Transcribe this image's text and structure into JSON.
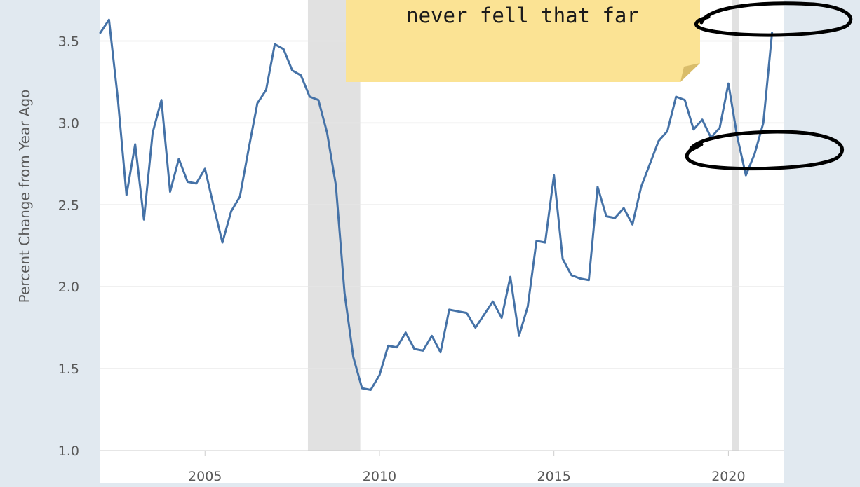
{
  "chart_data": {
    "type": "line",
    "title": "",
    "xlabel": "",
    "ylabel": "Percent Change from Year Ago",
    "xlim": [
      2002.0,
      2021.6
    ],
    "ylim": [
      1.0,
      3.75
    ],
    "x_ticks": [
      {
        "value": 2005,
        "label": "2005"
      },
      {
        "value": 2010,
        "label": "2010"
      },
      {
        "value": 2015,
        "label": "2015"
      },
      {
        "value": 2020,
        "label": "2020"
      }
    ],
    "y_ticks": [
      {
        "value": 1.0,
        "label": "1.0"
      },
      {
        "value": 1.5,
        "label": "1.5"
      },
      {
        "value": 2.0,
        "label": "2.0"
      },
      {
        "value": 2.5,
        "label": "2.5"
      },
      {
        "value": 3.0,
        "label": "3.0"
      },
      {
        "value": 3.5,
        "label": "3.5"
      }
    ],
    "grid": true,
    "recessions": [
      {
        "start": 2007.95,
        "end": 2009.45
      },
      {
        "start": 2020.1,
        "end": 2020.3
      }
    ],
    "series": [
      {
        "color": "#4572a7",
        "x": [
          2002.0,
          2002.25,
          2002.5,
          2002.75,
          2003.0,
          2003.25,
          2003.5,
          2003.75,
          2004.0,
          2004.25,
          2004.5,
          2004.75,
          2005.0,
          2005.25,
          2005.5,
          2005.75,
          2006.0,
          2006.25,
          2006.5,
          2006.75,
          2007.0,
          2007.25,
          2007.5,
          2007.75,
          2008.0,
          2008.25,
          2008.5,
          2008.75,
          2009.0,
          2009.25,
          2009.5,
          2009.75,
          2010.0,
          2010.25,
          2010.5,
          2010.75,
          2011.0,
          2011.25,
          2011.5,
          2011.75,
          2012.0,
          2012.25,
          2012.5,
          2012.75,
          2013.0,
          2013.25,
          2013.5,
          2013.75,
          2014.0,
          2014.25,
          2014.5,
          2014.75,
          2015.0,
          2015.25,
          2015.5,
          2015.75,
          2016.0,
          2016.25,
          2016.5,
          2016.75,
          2017.0,
          2017.25,
          2017.5,
          2017.75,
          2018.0,
          2018.25,
          2018.5,
          2018.75,
          2019.0,
          2019.25,
          2019.5,
          2019.75,
          2020.0,
          2020.25,
          2020.5,
          2020.75,
          2021.0,
          2021.25
        ],
        "y": [
          3.55,
          3.63,
          3.15,
          2.56,
          2.87,
          2.41,
          2.94,
          3.14,
          2.58,
          2.78,
          2.64,
          2.63,
          2.72,
          2.49,
          2.27,
          2.46,
          2.55,
          2.84,
          3.12,
          3.2,
          3.48,
          3.45,
          3.32,
          3.29,
          3.16,
          3.14,
          2.94,
          2.62,
          1.96,
          1.57,
          1.38,
          1.37,
          1.46,
          1.64,
          1.63,
          1.72,
          1.62,
          1.61,
          1.7,
          1.6,
          1.86,
          1.85,
          1.84,
          1.75,
          1.83,
          1.91,
          1.81,
          2.06,
          1.7,
          1.88,
          2.28,
          2.27,
          2.68,
          2.17,
          2.07,
          2.05,
          2.04,
          2.61,
          2.43,
          2.42,
          2.48,
          2.38,
          2.61,
          2.75,
          2.89,
          2.95,
          3.16,
          3.14,
          2.96,
          3.02,
          2.91,
          2.97,
          3.24,
          2.92,
          2.68,
          2.81,
          3.0,
          3.55
        ]
      }
    ],
    "annotations": [
      {
        "type": "note",
        "text": "never fell that far",
        "color": "#fbe394"
      },
      {
        "type": "ellipse-marker",
        "around_x": 2020.7,
        "around_y": 3.55
      },
      {
        "type": "ellipse-marker",
        "around_x": 2020.7,
        "around_y": 2.7
      }
    ]
  }
}
